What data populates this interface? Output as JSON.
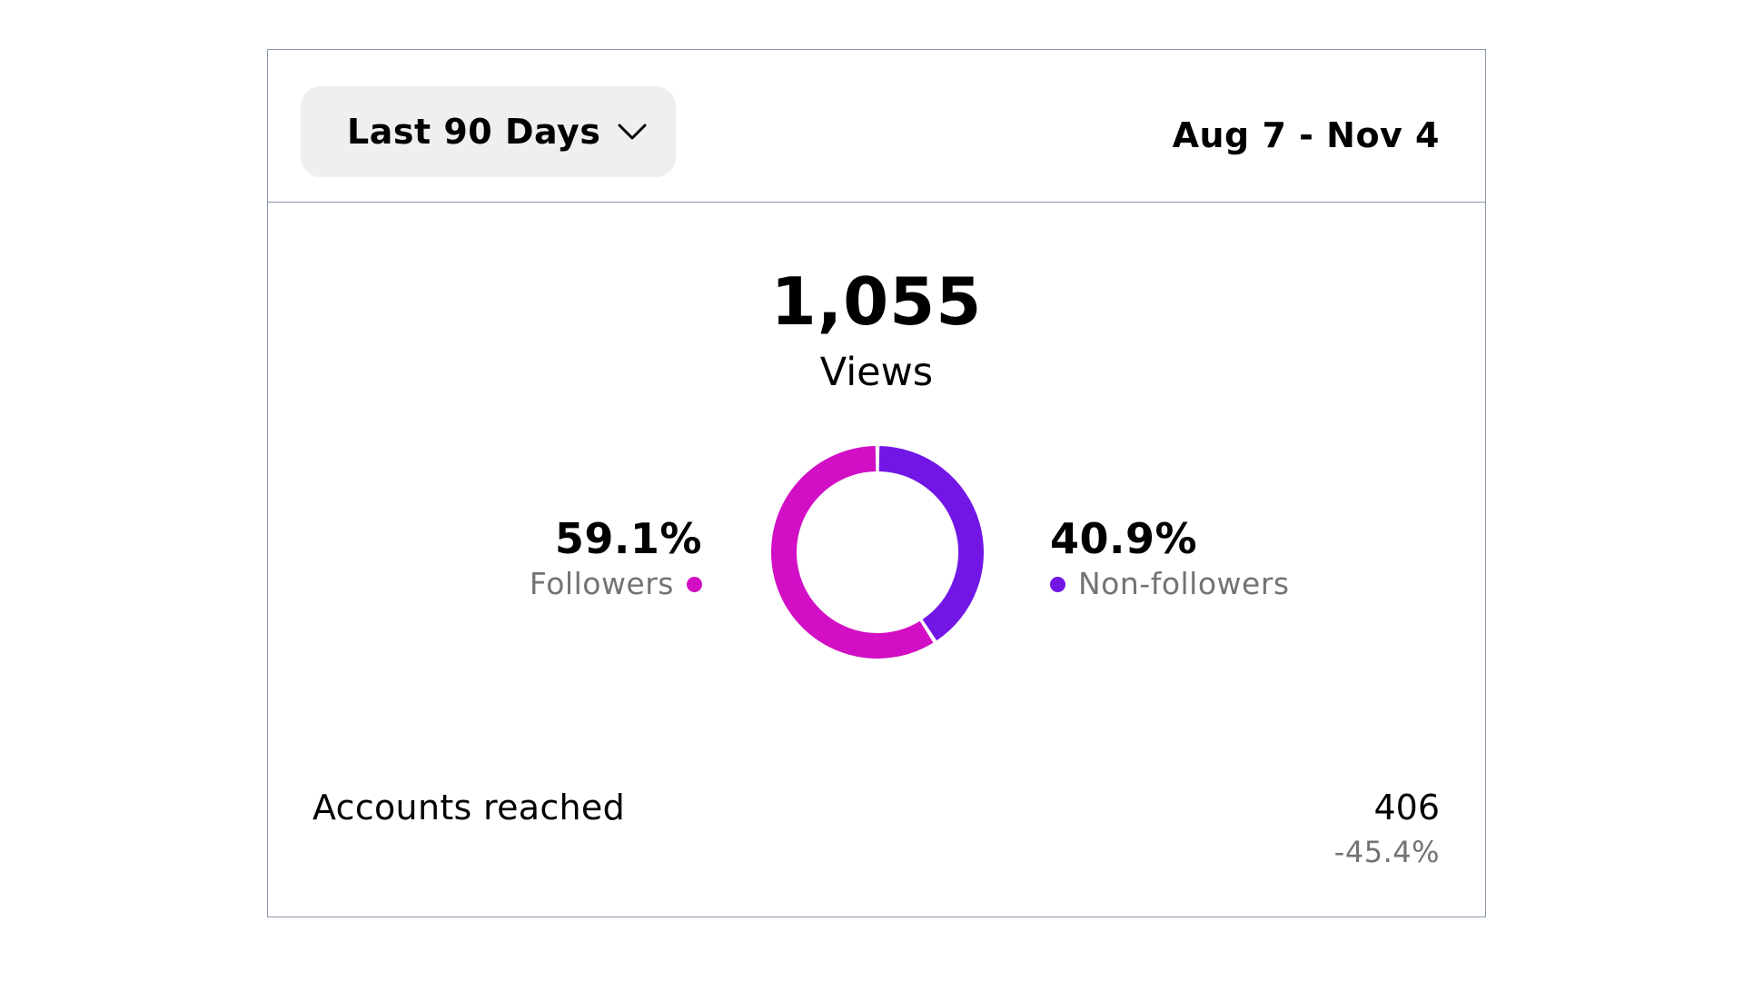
{
  "header": {
    "range_selector_label": "Last 90 Days",
    "range_selector_icon": "chevron-down-icon",
    "date_range": "Aug 7 - Nov 4"
  },
  "summary": {
    "views_count": "1,055",
    "views_label": "Views"
  },
  "breakdown": {
    "followers": {
      "percent": "59.1%",
      "label": "Followers",
      "value": 59.1,
      "color": "#d20fc4"
    },
    "non_followers": {
      "percent": "40.9%",
      "label": "Non-followers",
      "value": 40.9,
      "color": "#7216e6"
    }
  },
  "metrics": {
    "accounts_reached_label": "Accounts reached",
    "accounts_reached_value": "406",
    "accounts_reached_change": "-45.4%"
  }
}
